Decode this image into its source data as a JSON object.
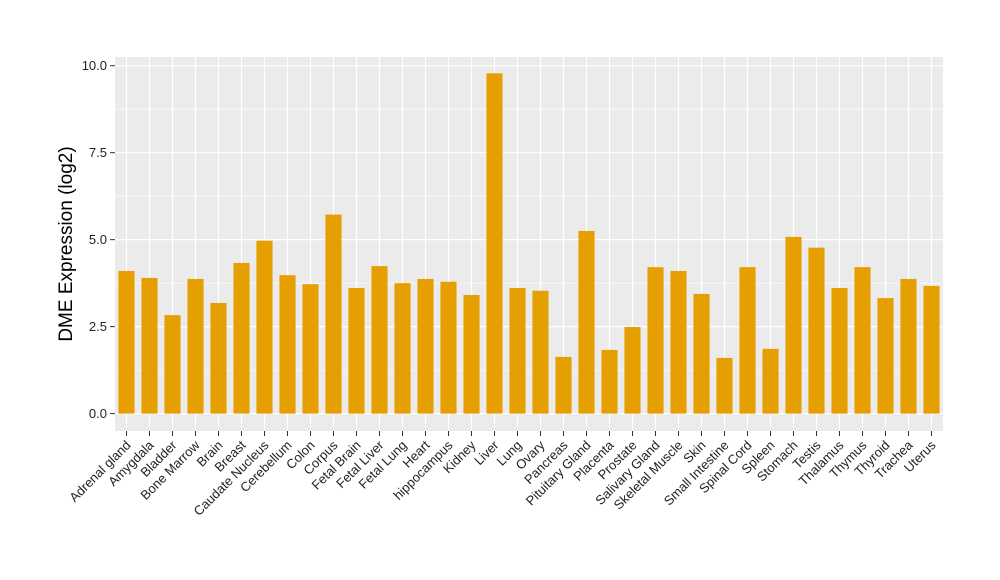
{
  "chart_data": {
    "type": "bar",
    "title": "",
    "xlabel": "",
    "ylabel": "DME Expression (log2)",
    "ylim": [
      -0.5,
      10.25
    ],
    "yticks": [
      0.0,
      2.5,
      5.0,
      7.5,
      10.0
    ],
    "ytick_labels": [
      "0.0",
      "2.5",
      "5.0",
      "7.5",
      "10.0"
    ],
    "grid": true,
    "bar_color": "#E69F00",
    "panel_background": "#EBEBEB",
    "grid_color": "#FFFFFF",
    "categories": [
      "Adrenal gland",
      "Amygdala",
      "Bladder",
      "Bone Marrow",
      "Brain",
      "Breast",
      "Caudate Nucleus",
      "Cerebellum",
      "Colon",
      "Corpus",
      "Fetal Brain",
      "Fetal Liver",
      "Fetal Lung",
      "Heart",
      "hippocampus",
      "Kidney",
      "Liver",
      "Lung",
      "Ovary",
      "Pancreas",
      "Pituitary Gland",
      "Placenta",
      "Prostate",
      "Salivary Gland",
      "Skeletal Muscle",
      "Skin",
      "Small Intestine",
      "Spinal Cord",
      "Spleen",
      "Stomach",
      "Testis",
      "Thalamus",
      "Thymus",
      "Thyroid",
      "Trachea",
      "Uterus"
    ],
    "values": [
      4.1,
      3.9,
      2.83,
      3.87,
      3.18,
      4.33,
      4.97,
      3.98,
      3.72,
      5.72,
      3.61,
      4.24,
      3.75,
      3.87,
      3.79,
      3.41,
      9.78,
      3.61,
      3.53,
      1.63,
      5.25,
      1.83,
      2.49,
      4.21,
      4.1,
      3.44,
      1.6,
      4.21,
      1.86,
      5.08,
      4.77,
      3.61,
      4.21,
      3.32,
      3.87,
      3.67
    ]
  }
}
